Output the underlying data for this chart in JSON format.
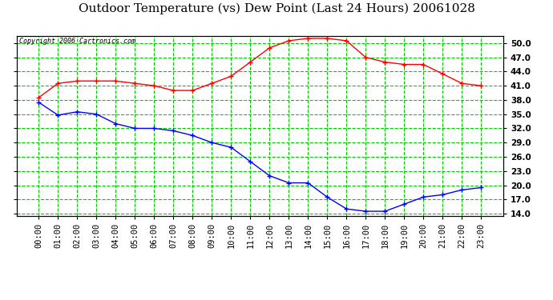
{
  "title": "Outdoor Temperature (vs) Dew Point (Last 24 Hours) 20061028",
  "copyright": "Copyright 2006 Cartronics.com",
  "hours": [
    "00:00",
    "01:00",
    "02:00",
    "03:00",
    "04:00",
    "05:00",
    "06:00",
    "07:00",
    "08:00",
    "09:00",
    "10:00",
    "11:00",
    "12:00",
    "13:00",
    "14:00",
    "15:00",
    "16:00",
    "17:00",
    "18:00",
    "19:00",
    "20:00",
    "21:00",
    "22:00",
    "23:00"
  ],
  "temp": [
    37.5,
    34.8,
    35.5,
    35.0,
    33.0,
    32.0,
    32.0,
    31.5,
    30.5,
    29.0,
    28.0,
    25.0,
    22.0,
    20.5,
    20.5,
    17.5,
    15.0,
    14.5,
    14.5,
    16.0,
    17.5,
    18.0,
    19.0,
    19.5
  ],
  "dewpoint": [
    38.5,
    41.5,
    42.0,
    42.0,
    42.0,
    41.5,
    41.0,
    40.0,
    40.0,
    41.5,
    43.0,
    46.0,
    49.0,
    50.5,
    51.0,
    51.0,
    50.5,
    47.0,
    46.0,
    45.5,
    45.5,
    43.5,
    41.5,
    41.0
  ],
  "temp_color": "#0000ff",
  "dewpoint_color": "#ff0000",
  "bg_color": "#ffffff",
  "plot_bg_color": "#ffffff",
  "grid_color": "#00cc00",
  "ylim": [
    13.5,
    51.5
  ],
  "yticks": [
    14.0,
    17.0,
    20.0,
    23.0,
    26.0,
    29.0,
    32.0,
    35.0,
    38.0,
    41.0,
    44.0,
    47.0,
    50.0
  ],
  "title_fontsize": 11,
  "copyright_fontsize": 6,
  "axis_fontsize": 7.5
}
